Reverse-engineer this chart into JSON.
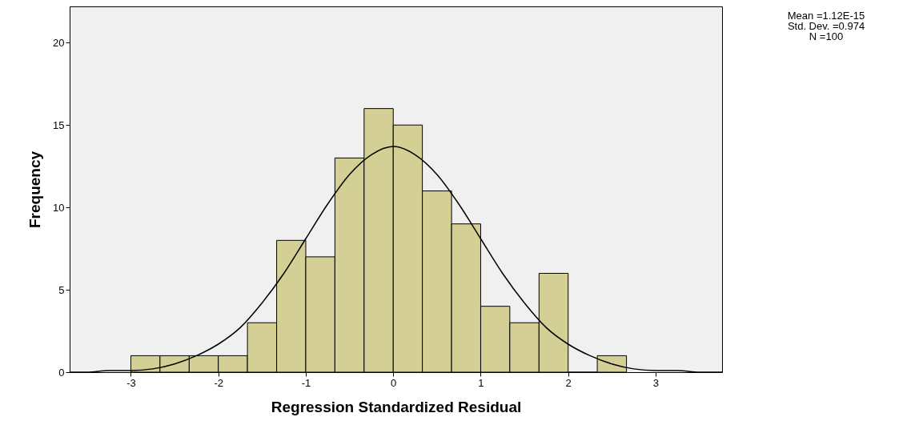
{
  "chart_data": {
    "type": "histogram",
    "xlabel": "Regression Standardized Residual",
    "ylabel": "Frequency",
    "bins": [
      -3,
      -2.667,
      -2.333,
      -2,
      -1.667,
      -1.333,
      -1,
      -0.667,
      -0.333,
      0,
      0.333,
      0.667,
      1,
      1.333,
      1.667,
      2,
      2.333,
      2.667
    ],
    "values": [
      1,
      1,
      1,
      1,
      3,
      8,
      7,
      13,
      16,
      15,
      11,
      9,
      4,
      3,
      6,
      0,
      1
    ],
    "color": "#d4cf94",
    "series": [
      {
        "type": "line",
        "color": "#000000",
        "x": [
          -3.7,
          -3.5,
          -3.25,
          -3,
          -2.75,
          -2.5,
          -2.25,
          -2,
          -1.75,
          -1.5,
          -1.25,
          -1,
          -0.75,
          -0.5,
          -0.25,
          0,
          0.25,
          0.5,
          0.75,
          1,
          1.25,
          1.5,
          1.75,
          2,
          2.25,
          2.5,
          2.75,
          3,
          3.25,
          3.5,
          3.76
        ],
        "values": [
          0,
          0,
          0.1,
          0.1,
          0.2,
          0.5,
          1,
          1.7,
          2.7,
          4.2,
          6,
          8.1,
          10.2,
          12,
          13.2,
          13.7,
          13.2,
          12,
          10.2,
          8.1,
          6,
          4.2,
          2.7,
          1.7,
          1,
          0.5,
          0.2,
          0.1,
          0.1,
          0,
          0
        ]
      }
    ],
    "xlim": [
      -3.7,
      3.76
    ],
    "ylim": [
      0,
      22.2
    ],
    "xticks": [
      -3,
      -2,
      -1,
      0,
      1,
      2,
      3
    ],
    "yticks": [
      0,
      5,
      10,
      15,
      20
    ],
    "grid": false,
    "annotations": [
      "Mean =1.12E-15",
      "Std. Dev. =0.974",
      "N =100"
    ]
  }
}
